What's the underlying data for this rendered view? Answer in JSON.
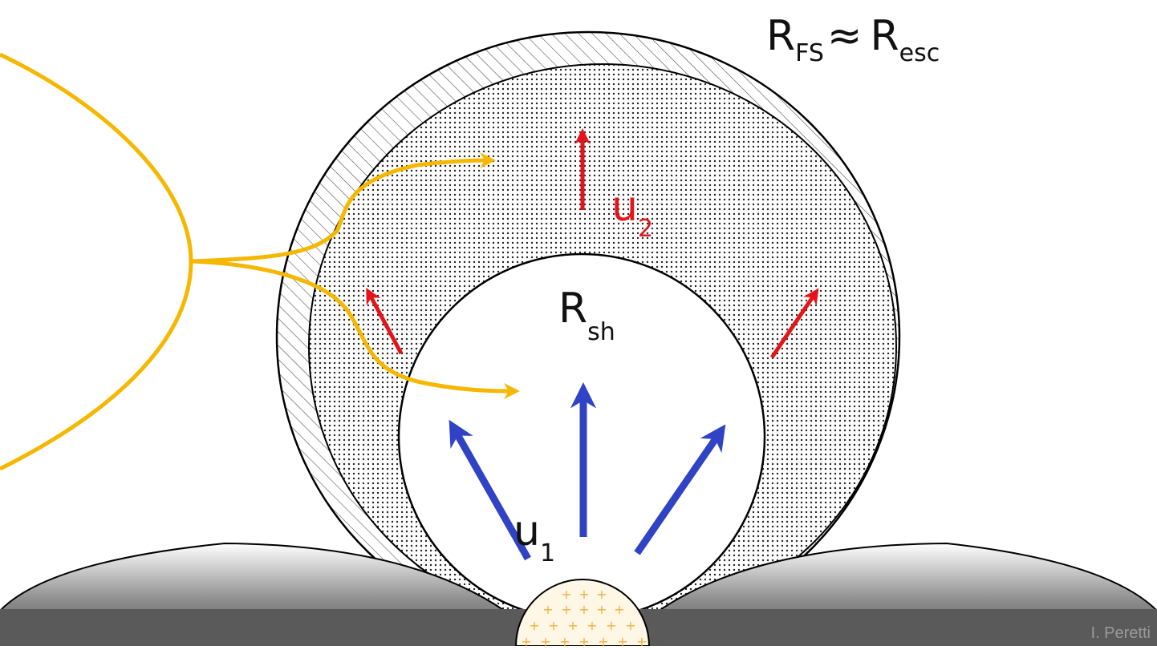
{
  "labels": {
    "forward_shock": {
      "main": "R",
      "sub": "FS",
      "approx": "≈",
      "main2": "R",
      "sub2": "esc"
    },
    "shock_radius": {
      "main": "R",
      "sub": "sh"
    },
    "upstream_velocity": {
      "main": "u",
      "sub": "1"
    },
    "downstream_velocity": {
      "main": "u",
      "sub": "2"
    }
  },
  "credit": "I. Peretti",
  "colors": {
    "particle_path": "#f5b700",
    "downstream_arrow": "#e5141b",
    "upstream_arrow": "#2f43c4",
    "outline": "#000000",
    "ground_dark": "#555555",
    "ground_light": "#ffffff",
    "cluster_fill": "#fff7e6",
    "cluster_plus": "#f0b040"
  }
}
